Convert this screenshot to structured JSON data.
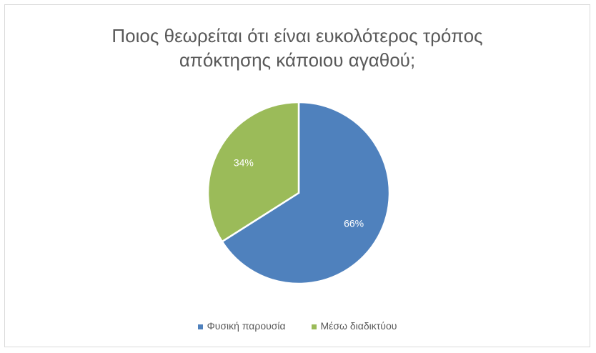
{
  "chart_data": {
    "type": "pie",
    "title_lines": [
      "Ποιος θεωρείται ότι είναι ευκολότερος τρόπος",
      "απόκτησης κάποιου αγαθού;"
    ],
    "categories": [
      "Φυσική παρουσία",
      "Μέσω διαδικτύου"
    ],
    "values": [
      66,
      34
    ],
    "data_labels": [
      "66%",
      "34%"
    ],
    "colors": [
      "#4f81bd",
      "#9bbb59"
    ],
    "legend_position": "bottom",
    "start_angle": "12 o'clock, clockwise"
  }
}
